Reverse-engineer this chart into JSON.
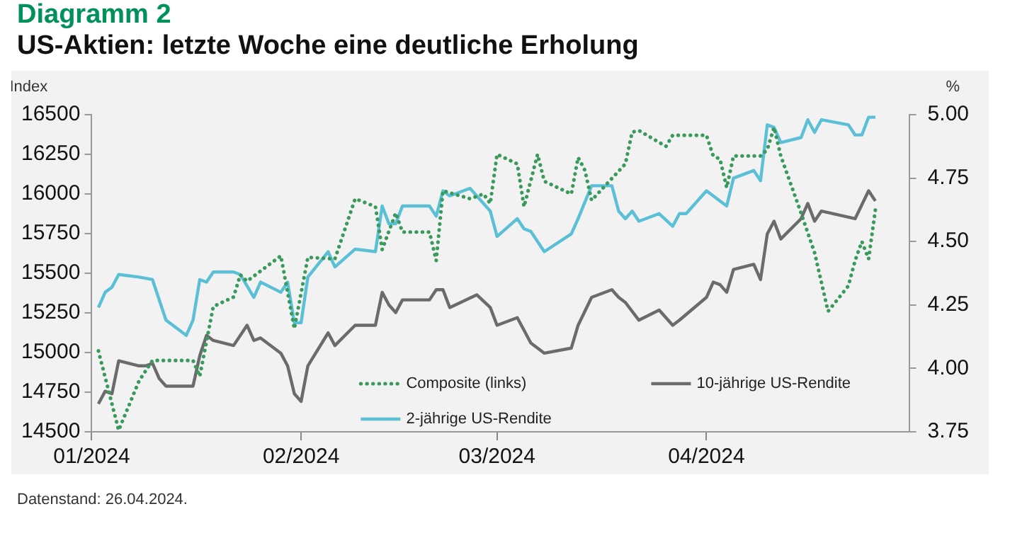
{
  "chart_data": {
    "type": "line",
    "title": "Diagramm 2",
    "subtitle": "US-Aktien: letzte Woche eine deutliche Erholung",
    "ylabel": "Index",
    "y2label": "%",
    "annotations": [
      "Datenstand: 26.04.2024."
    ],
    "xlim": [
      "2024-01-01",
      "2024-05-01"
    ],
    "xticks": [
      {
        "value": "2024-01-01",
        "label": "01/2024"
      },
      {
        "value": "2024-02-01",
        "label": "02/2024"
      },
      {
        "value": "2024-03-01",
        "label": "03/2024"
      },
      {
        "value": "2024-04-01",
        "label": "04/2024"
      }
    ],
    "ylim": [
      14500,
      16500
    ],
    "yticks": [
      14500,
      14750,
      15000,
      15250,
      15500,
      15750,
      16000,
      16250,
      16500
    ],
    "y2lim": [
      3.75,
      5.0
    ],
    "y2ticks": [
      {
        "value": 3.75,
        "label": "3.75"
      },
      {
        "value": 4.0,
        "label": "4.00"
      },
      {
        "value": 4.25,
        "label": "4.25"
      },
      {
        "value": 4.5,
        "label": "4.50"
      },
      {
        "value": 4.75,
        "label": "4.75"
      },
      {
        "value": 5.0,
        "label": "5.00"
      }
    ],
    "grid": false,
    "legend": "bottom",
    "marker": "none",
    "series": [
      {
        "name": "Composite (links)",
        "color": "#3a9a5c",
        "line_style": "dotted",
        "x": [
          "2024-01-02",
          "2024-01-05",
          "2024-01-08",
          "2024-01-10",
          "2024-01-16",
          "2024-01-17",
          "2024-01-19",
          "2024-01-22",
          "2024-01-23",
          "2024-01-24",
          "2024-01-29",
          "2024-01-31",
          "2024-02-02",
          "2024-02-06",
          "2024-02-09",
          "2024-02-12",
          "2024-02-13",
          "2024-02-15",
          "2024-02-16",
          "2024-02-20",
          "2024-02-21",
          "2024-02-22",
          "2024-02-26",
          "2024-02-28",
          "2024-02-29",
          "2024-03-01",
          "2024-03-04",
          "2024-03-05",
          "2024-03-07",
          "2024-03-08",
          "2024-03-12",
          "2024-03-13",
          "2024-03-14",
          "2024-03-15",
          "2024-03-20",
          "2024-03-21",
          "2024-03-22",
          "2024-03-26",
          "2024-03-27",
          "2024-04-01",
          "2024-04-02",
          "2024-04-03",
          "2024-04-04",
          "2024-04-05",
          "2024-04-09",
          "2024-04-10",
          "2024-04-11",
          "2024-04-12",
          "2024-04-15",
          "2024-04-17",
          "2024-04-19",
          "2024-04-22",
          "2024-04-23",
          "2024-04-24",
          "2024-04-25",
          "2024-04-26"
        ],
        "values": [
          15010,
          14510,
          14820,
          14950,
          14950,
          14850,
          15290,
          15350,
          15490,
          15450,
          15610,
          15150,
          15600,
          15590,
          15970,
          15920,
          15650,
          15880,
          15760,
          15760,
          15580,
          16020,
          15970,
          16000,
          15940,
          16250,
          16190,
          15920,
          16250,
          16080,
          16000,
          16230,
          16150,
          15960,
          16190,
          16390,
          16400,
          16300,
          16370,
          16370,
          16240,
          16220,
          16040,
          16240,
          16240,
          16280,
          16420,
          16240,
          15880,
          15630,
          15260,
          15420,
          15580,
          15700,
          15590,
          15900
        ]
      },
      {
        "name": "10-jährige US-Rendite",
        "color": "#6b6b6b",
        "axis": "y2",
        "line_style": "solid",
        "x": [
          "2024-01-02",
          "2024-01-03",
          "2024-01-04",
          "2024-01-05",
          "2024-01-08",
          "2024-01-09",
          "2024-01-10",
          "2024-01-11",
          "2024-01-12",
          "2024-01-16",
          "2024-01-17",
          "2024-01-18",
          "2024-01-19",
          "2024-01-22",
          "2024-01-24",
          "2024-01-25",
          "2024-01-26",
          "2024-01-29",
          "2024-01-30",
          "2024-01-31",
          "2024-02-01",
          "2024-02-02",
          "2024-02-05",
          "2024-02-06",
          "2024-02-09",
          "2024-02-12",
          "2024-02-13",
          "2024-02-14",
          "2024-02-15",
          "2024-02-16",
          "2024-02-20",
          "2024-02-21",
          "2024-02-22",
          "2024-02-23",
          "2024-02-27",
          "2024-02-29",
          "2024-03-01",
          "2024-03-04",
          "2024-03-06",
          "2024-03-08",
          "2024-03-12",
          "2024-03-13",
          "2024-03-15",
          "2024-03-18",
          "2024-03-19",
          "2024-03-20",
          "2024-03-22",
          "2024-03-25",
          "2024-03-27",
          "2024-03-28",
          "2024-04-01",
          "2024-04-02",
          "2024-04-03",
          "2024-04-04",
          "2024-04-05",
          "2024-04-08",
          "2024-04-09",
          "2024-04-10",
          "2024-04-11",
          "2024-04-12",
          "2024-04-15",
          "2024-04-16",
          "2024-04-17",
          "2024-04-18",
          "2024-04-23",
          "2024-04-25",
          "2024-04-26"
        ],
        "values": [
          3.86,
          3.91,
          3.9,
          4.03,
          4.01,
          4.01,
          4.02,
          3.96,
          3.93,
          3.93,
          4.05,
          4.13,
          4.11,
          4.09,
          4.17,
          4.11,
          4.12,
          4.06,
          4.01,
          3.9,
          3.87,
          4.01,
          4.14,
          4.09,
          4.17,
          4.17,
          4.3,
          4.25,
          4.22,
          4.27,
          4.27,
          4.31,
          4.31,
          4.24,
          4.29,
          4.24,
          4.17,
          4.2,
          4.1,
          4.06,
          4.08,
          4.17,
          4.28,
          4.31,
          4.28,
          4.26,
          4.19,
          4.23,
          4.17,
          4.19,
          4.28,
          4.34,
          4.33,
          4.3,
          4.39,
          4.41,
          4.35,
          4.53,
          4.58,
          4.51,
          4.59,
          4.65,
          4.58,
          4.62,
          4.59,
          4.7,
          4.66
        ]
      },
      {
        "name": "2-jährige US-Rendite",
        "color": "#5bbfd6",
        "axis": "y2",
        "line_style": "solid",
        "x": [
          "2024-01-02",
          "2024-01-03",
          "2024-01-04",
          "2024-01-05",
          "2024-01-08",
          "2024-01-10",
          "2024-01-12",
          "2024-01-15",
          "2024-01-16",
          "2024-01-17",
          "2024-01-18",
          "2024-01-19",
          "2024-01-22",
          "2024-01-23",
          "2024-01-25",
          "2024-01-26",
          "2024-01-29",
          "2024-01-30",
          "2024-01-31",
          "2024-02-01",
          "2024-02-02",
          "2024-02-05",
          "2024-02-06",
          "2024-02-09",
          "2024-02-12",
          "2024-02-13",
          "2024-02-14",
          "2024-02-15",
          "2024-02-16",
          "2024-02-20",
          "2024-02-21",
          "2024-02-22",
          "2024-02-23",
          "2024-02-26",
          "2024-02-29",
          "2024-03-01",
          "2024-03-04",
          "2024-03-05",
          "2024-03-06",
          "2024-03-08",
          "2024-03-12",
          "2024-03-13",
          "2024-03-15",
          "2024-03-18",
          "2024-03-19",
          "2024-03-20",
          "2024-03-21",
          "2024-03-22",
          "2024-03-25",
          "2024-03-27",
          "2024-03-28",
          "2024-03-29",
          "2024-04-01",
          "2024-04-04",
          "2024-04-05",
          "2024-04-08",
          "2024-04-09",
          "2024-04-10",
          "2024-04-11",
          "2024-04-12",
          "2024-04-15",
          "2024-04-16",
          "2024-04-17",
          "2024-04-18",
          "2024-04-22",
          "2024-04-23",
          "2024-04-24",
          "2024-04-25",
          "2024-04-26"
        ],
        "values": [
          4.24,
          4.3,
          4.32,
          4.37,
          4.36,
          4.35,
          4.19,
          4.13,
          4.19,
          4.35,
          4.34,
          4.38,
          4.38,
          4.37,
          4.28,
          4.34,
          4.3,
          4.34,
          4.18,
          4.18,
          4.36,
          4.46,
          4.4,
          4.47,
          4.46,
          4.64,
          4.57,
          4.57,
          4.64,
          4.64,
          4.6,
          4.7,
          4.68,
          4.71,
          4.62,
          4.52,
          4.59,
          4.55,
          4.54,
          4.46,
          4.53,
          4.59,
          4.72,
          4.72,
          4.62,
          4.59,
          4.62,
          4.58,
          4.61,
          4.56,
          4.61,
          4.61,
          4.7,
          4.64,
          4.75,
          4.78,
          4.74,
          4.96,
          4.95,
          4.89,
          4.91,
          4.98,
          4.93,
          4.98,
          4.96,
          4.92,
          4.92,
          4.99,
          4.99
        ]
      }
    ]
  }
}
